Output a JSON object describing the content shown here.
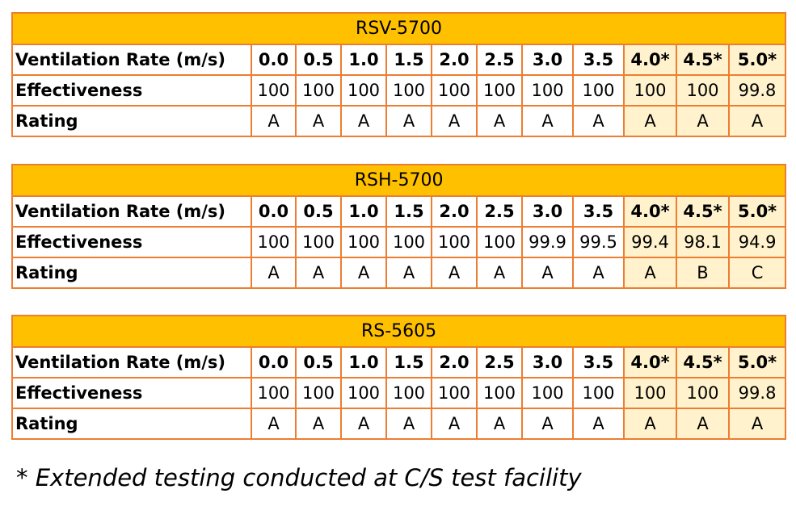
{
  "tables": [
    {
      "title": "RSV-5700",
      "row_labels": {
        "rate": "Ventilation Rate (m/s)",
        "effectiveness": "Effectiveness",
        "rating": "Rating"
      },
      "rates": [
        "0.0",
        "0.5",
        "1.0",
        "1.5",
        "2.0",
        "2.5",
        "3.0",
        "3.5",
        "4.0*",
        "4.5*",
        "5.0*"
      ],
      "effectiveness": [
        "100",
        "100",
        "100",
        "100",
        "100",
        "100",
        "100",
        "100",
        "100",
        "100",
        "99.8"
      ],
      "rating": [
        "A",
        "A",
        "A",
        "A",
        "A",
        "A",
        "A",
        "A",
        "A",
        "A",
        "A"
      ]
    },
    {
      "title": "RSH-5700",
      "row_labels": {
        "rate": "Ventilation Rate (m/s)",
        "effectiveness": "Effectiveness",
        "rating": "Rating"
      },
      "rates": [
        "0.0",
        "0.5",
        "1.0",
        "1.5",
        "2.0",
        "2.5",
        "3.0",
        "3.5",
        "4.0*",
        "4.5*",
        "5.0*"
      ],
      "effectiveness": [
        "100",
        "100",
        "100",
        "100",
        "100",
        "100",
        "99.9",
        "99.5",
        "99.4",
        "98.1",
        "94.9"
      ],
      "rating": [
        "A",
        "A",
        "A",
        "A",
        "A",
        "A",
        "A",
        "A",
        "A",
        "B",
        "C"
      ]
    },
    {
      "title": "RS-5605",
      "row_labels": {
        "rate": "Ventilation Rate (m/s)",
        "effectiveness": "Effectiveness",
        "rating": "Rating"
      },
      "rates": [
        "0.0",
        "0.5",
        "1.0",
        "1.5",
        "2.0",
        "2.5",
        "3.0",
        "3.5",
        "4.0*",
        "4.5*",
        "5.0*"
      ],
      "effectiveness": [
        "100",
        "100",
        "100",
        "100",
        "100",
        "100",
        "100",
        "100",
        "100",
        "100",
        "99.8"
      ],
      "rating": [
        "A",
        "A",
        "A",
        "A",
        "A",
        "A",
        "A",
        "A",
        "A",
        "A",
        "A"
      ]
    }
  ],
  "footnote": "* Extended testing conducted at C/S test facility",
  "colors": {
    "title_fill": "#FFC000",
    "extended_fill": "#FFF2CC",
    "border": "#ED7D31"
  }
}
